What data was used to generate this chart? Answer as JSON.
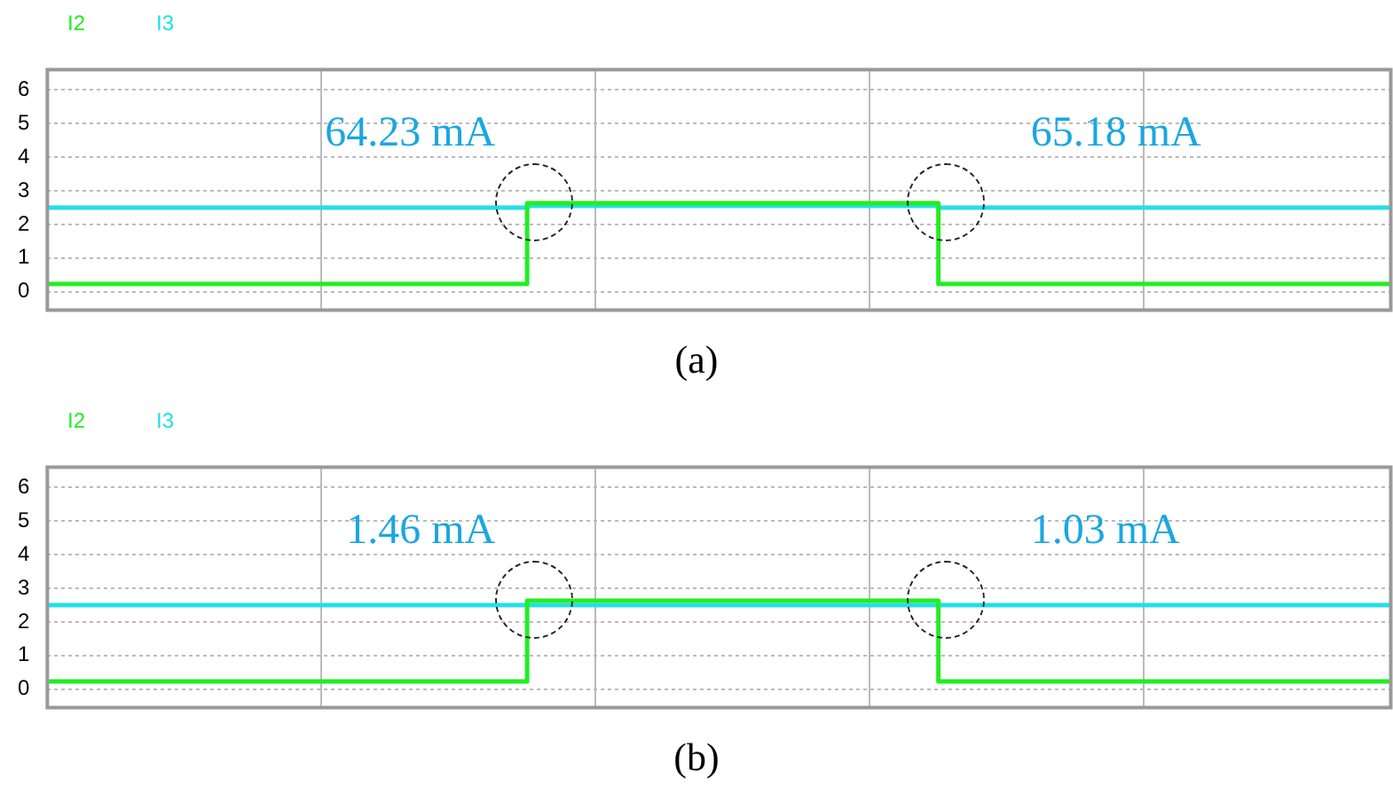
{
  "chart_data": [
    {
      "type": "step",
      "categories": [
        null,
        null,
        null,
        null,
        null,
        null,
        null,
        null,
        null,
        null,
        null,
        null,
        null,
        null,
        null,
        null,
        null,
        null,
        null,
        null,
        null,
        null,
        null,
        null,
        null,
        null,
        null,
        null,
        null,
        null,
        null,
        null,
        null,
        null,
        null,
        null,
        null,
        null,
        null,
        null,
        null,
        null,
        null,
        null,
        null,
        null,
        null,
        null,
        null,
        null
      ],
      "series": [
        {
          "name": "I2",
          "color": "#22ee22",
          "values": [
            0.23,
            0.23,
            0.23,
            0.23,
            0.23,
            0.23,
            0.23,
            0.23,
            0.23,
            0.23,
            0.23,
            0.23,
            0.23,
            0.23,
            0.23,
            0.23,
            0.23,
            0.23,
            2.63,
            2.63,
            2.63,
            2.63,
            2.63,
            2.63,
            2.63,
            2.63,
            2.63,
            2.63,
            2.63,
            2.63,
            2.63,
            2.63,
            2.63,
            0.23,
            0.23,
            0.23,
            0.23,
            0.23,
            0.23,
            0.23,
            0.23,
            0.23,
            0.23,
            0.23,
            0.23,
            0.23,
            0.23,
            0.23,
            0.23,
            0.23
          ]
        },
        {
          "name": "I3",
          "color": "#22e0e6",
          "values": [
            2.5,
            2.5,
            2.5,
            2.5,
            2.5,
            2.5,
            2.5,
            2.5,
            2.5,
            2.5,
            2.5,
            2.5,
            2.5,
            2.5,
            2.5,
            2.5,
            2.5,
            2.5,
            2.55,
            2.55,
            2.55,
            2.55,
            2.55,
            2.55,
            2.55,
            2.55,
            2.55,
            2.55,
            2.55,
            2.55,
            2.55,
            2.55,
            2.55,
            2.5,
            2.5,
            2.5,
            2.5,
            2.5,
            2.5,
            2.5,
            2.5,
            2.5,
            2.5,
            2.5,
            2.5,
            2.5,
            2.5,
            2.5,
            2.5,
            2.5
          ]
        }
      ],
      "ylim": [
        -0.55,
        6.6
      ],
      "yticks": [
        0,
        1,
        2,
        3,
        4,
        5,
        6
      ],
      "grid": true,
      "legend": "top left",
      "annotations": [
        "64.23 mA",
        "65.18 mA",
        "(a)"
      ]
    },
    {
      "type": "step",
      "categories": [
        null,
        null,
        null,
        null,
        null,
        null,
        null,
        null,
        null,
        null,
        null,
        null,
        null,
        null,
        null,
        null,
        null,
        null,
        null,
        null,
        null,
        null,
        null,
        null,
        null,
        null,
        null,
        null,
        null,
        null,
        null,
        null,
        null,
        null,
        null,
        null,
        null,
        null,
        null,
        null,
        null,
        null,
        null,
        null,
        null,
        null,
        null,
        null,
        null,
        null
      ],
      "series": [
        {
          "name": "I2",
          "color": "#22ee22",
          "values": [
            0.23,
            0.23,
            0.23,
            0.23,
            0.23,
            0.23,
            0.23,
            0.23,
            0.23,
            0.23,
            0.23,
            0.23,
            0.23,
            0.23,
            0.23,
            0.23,
            0.23,
            0.23,
            2.63,
            2.63,
            2.63,
            2.63,
            2.63,
            2.63,
            2.63,
            2.63,
            2.63,
            2.63,
            2.63,
            2.63,
            2.63,
            2.63,
            2.63,
            0.23,
            0.23,
            0.23,
            0.23,
            0.23,
            0.23,
            0.23,
            0.23,
            0.23,
            0.23,
            0.23,
            0.23,
            0.23,
            0.23,
            0.23,
            0.23,
            0.23
          ]
        },
        {
          "name": "I3",
          "color": "#22e0e6",
          "values": [
            2.5,
            2.5,
            2.5,
            2.5,
            2.5,
            2.5,
            2.5,
            2.5,
            2.5,
            2.5,
            2.5,
            2.5,
            2.5,
            2.5,
            2.5,
            2.5,
            2.5,
            2.5,
            2.5,
            2.5,
            2.5,
            2.5,
            2.5,
            2.5,
            2.5,
            2.5,
            2.5,
            2.5,
            2.5,
            2.5,
            2.5,
            2.5,
            2.5,
            2.5,
            2.5,
            2.5,
            2.5,
            2.5,
            2.5,
            2.5,
            2.5,
            2.5,
            2.5,
            2.5,
            2.5,
            2.5,
            2.5,
            2.5,
            2.5,
            2.5
          ]
        }
      ],
      "ylim": [
        -0.55,
        6.6
      ],
      "yticks": [
        0,
        1,
        2,
        3,
        4,
        5,
        6
      ],
      "grid": true,
      "legend": "top left",
      "annotations": [
        "1.46 mA",
        "1.03 mA",
        "(b)"
      ]
    }
  ]
}
